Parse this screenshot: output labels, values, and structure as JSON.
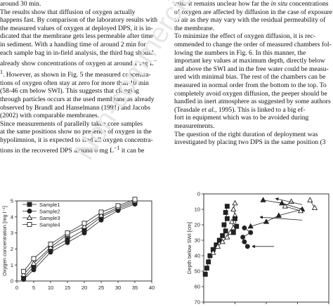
{
  "left_column": {
    "l1": "around 30 min.",
    "l2": "The results show that diffusion of oxygen actually",
    "l3": "happens fast. By comparison of the laboratory results with",
    "l4": "the measured values of oxygen at deployed DPS, it is in-",
    "l5": "dicated that the membrane gets less permeable after time",
    "l6": "in sediment. With a handling time of around 2 min for",
    "l7": "each sample bag in in-field analysis, the third bag should",
    "l8": "already show concentrations of oxygen at around 1 mg L",
    "l9": ". However, as shown in Fig. 5 the measured concentra-",
    "l10": "tions of oxygen often stay at zero for more than 10 min",
    "l11": "(58-46 cm below SWI). This suggests that clogging",
    "l12": "through particles occurs at the used membrane as already",
    "l13": "observed by Brandl and Hanselmann (1991) and Jacobs",
    "l14": "(2002) with comparable membranes.",
    "l15": "Since measurements of parallelly taken core samples",
    "l16": "at the same positions show no presence of oxygen in the",
    "l17": "hypolimnion, it is expected to find all oxygen concentra-",
    "l18": "tions in the recovered DPS around 0 mg L",
    "l18b": " it can be"
  },
  "right_column": {
    "r1a": "min. It remains unclear how far the ",
    "r1b": "in situ",
    "r1c": " concentrations",
    "r2": "of oxygen are affected by diffusion in the case of exposure",
    "r3": "to air as they may vary with the residual permeability of",
    "r4": "the membrane.",
    "r5": "To minimize the effect of oxygen diffusion, it is rec-",
    "r6": "ommended to change the order of measured chambers fol-",
    "r7": "lowing the numbers in Fig. 6. In this manner, the",
    "r8": "important key values at maximum depth, directly below",
    "r9": "and above the SWI and in the free water could be measu-",
    "r10": "ured with minimal bias. The rest of the chambers can be",
    "r11": "measured in normal order from the bottom to the top. To",
    "r12": "completely avoid oxygen diffusion, the peeper should be",
    "r13": "handled in inert atmosphere as suggested by some authors",
    "r14a": "(Teasdale ",
    "r14b": "et al.",
    "r14c": ", 1995). This is linked to a big ef-",
    "r15": "fort in equipment which was to be avoided during",
    "r16": "measurements.",
    "r17": "The question of the right duration of deployment was",
    "r18": "investigated by placing two DPS in the same position (3"
  },
  "watermark": "Non-commercial",
  "chart_data": [
    {
      "type": "line",
      "title": "",
      "xlabel": "",
      "ylabel": "Oxygen concentration [mg l⁻¹]",
      "xlim": [
        0,
        40
      ],
      "ylim": [
        0,
        5
      ],
      "xticks": [
        0,
        5,
        10,
        15,
        20,
        25,
        30,
        35,
        40
      ],
      "yticks": [
        0,
        1,
        2,
        3,
        4,
        5
      ],
      "legend": "top-left",
      "series": [
        {
          "name": "Sample1",
          "marker": "filled-square",
          "x": [
            2,
            5,
            10,
            15,
            20,
            25,
            30,
            35
          ],
          "y": [
            0.2,
            0.9,
            2.0,
            2.6,
            3.2,
            4.0,
            4.5,
            4.9
          ]
        },
        {
          "name": "Sample2",
          "marker": "filled-circle",
          "x": [
            2,
            5,
            10,
            15,
            20,
            25,
            30,
            35
          ],
          "y": [
            0.1,
            0.7,
            1.8,
            2.4,
            3.0,
            3.8,
            4.4,
            4.8
          ]
        },
        {
          "name": "Sample3",
          "marker": "open-triangle",
          "x": [
            2,
            5,
            10,
            15,
            20,
            25,
            30,
            35
          ],
          "y": [
            0.4,
            1.1,
            2.1,
            2.9,
            3.4,
            4.1,
            4.6,
            5.0
          ]
        },
        {
          "name": "Sample4",
          "marker": "open-square",
          "x": [
            2,
            5,
            10,
            15,
            20,
            25,
            30,
            35
          ],
          "y": [
            0.6,
            1.4,
            2.3,
            3.0,
            3.6,
            4.3,
            4.7,
            5.1
          ]
        }
      ]
    },
    {
      "type": "line",
      "title": "",
      "xlabel": "",
      "ylabel": "Depth below SWI [cm]",
      "xlim": [
        0,
        8
      ],
      "ylim": [
        0,
        70
      ],
      "y_inverted": true,
      "xticks": [
        0,
        2,
        4,
        6,
        8
      ],
      "yticks": [
        0,
        10,
        20,
        30,
        40,
        50,
        60,
        70
      ],
      "legend": "none",
      "series": [
        {
          "marker": "filled-square",
          "x": [
            1.5,
            1.4,
            1.5,
            1.3,
            1.4,
            1.2,
            1.0,
            0.8,
            0.6,
            0.4,
            0.3,
            0.2,
            0.1
          ],
          "y": [
            8,
            12,
            16,
            20,
            24,
            27,
            30,
            33,
            36,
            40,
            44,
            48,
            52
          ]
        },
        {
          "marker": "open-triangle",
          "x": [
            2.0,
            1.9,
            2.0,
            1.8,
            1.9,
            1.7,
            1.5,
            1.2,
            0.9,
            0.6
          ],
          "y": [
            6,
            10,
            14,
            18,
            22,
            25,
            28,
            31,
            34,
            38
          ]
        },
        {
          "marker": "filled-triangle",
          "x": [
            3.8,
            5.0,
            6.3,
            4.8,
            4.0,
            3.0
          ],
          "y": [
            4,
            6,
            10,
            14,
            18,
            21
          ]
        },
        {
          "marker": "open-triangle",
          "x": [
            5.6,
            5.2,
            6.2
          ],
          "y": [
            5,
            8,
            11
          ]
        },
        {
          "marker": "filled-circle",
          "x": [
            2.6,
            3.0,
            2.5,
            2.6,
            2.8
          ],
          "y": [
            22,
            25,
            28,
            31,
            34
          ]
        },
        {
          "marker": "open-triangle",
          "x": [
            6.8,
            7.1
          ],
          "y": [
            4,
            9
          ]
        },
        {
          "marker": "filled-square",
          "x": [
            2.0,
            2.1,
            1.9
          ],
          "y": [
            16,
            21,
            25
          ]
        }
      ],
      "arrows": [
        {
          "x1": 6.3,
          "y1": 7,
          "x2": 4.6,
          "y2": 3
        },
        {
          "x1": 6.3,
          "y1": 17,
          "x2": 3.6,
          "y2": 15
        },
        {
          "x1": 4.5,
          "y1": 34,
          "x2": 3.1,
          "y2": 34
        }
      ]
    }
  ]
}
